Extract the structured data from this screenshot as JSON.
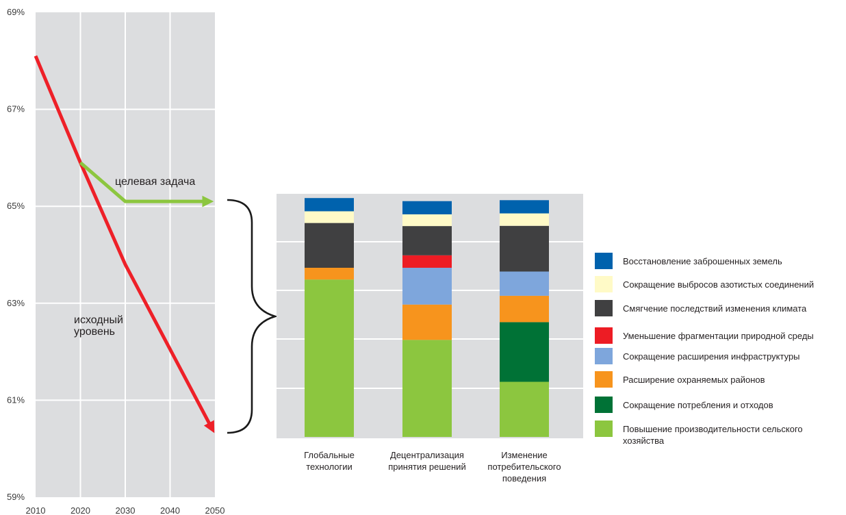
{
  "chart_data": [
    {
      "type": "line",
      "x": [
        2010,
        2020,
        2030,
        2040,
        2050
      ],
      "x_tick_labels": [
        "2010",
        "2020",
        "2030",
        "2040",
        "2050"
      ],
      "y_tick_labels": [
        "69%",
        "67%",
        "65%",
        "63%",
        "61%",
        "59%"
      ],
      "ylim": [
        59,
        69
      ],
      "xlim": [
        2010,
        2050
      ],
      "grid": true,
      "series": [
        {
          "name": "исходный уровень",
          "color": "#ee2028",
          "points": [
            [
              2010,
              68.1
            ],
            [
              2020,
              65.9
            ],
            [
              2030,
              63.8
            ],
            [
              2050,
              60.3
            ]
          ]
        },
        {
          "name": "целевая задача",
          "color": "#8cc63f",
          "points": [
            [
              2020,
              65.9
            ],
            [
              2030,
              65.1
            ],
            [
              2050,
              65.1
            ]
          ]
        }
      ],
      "annotations": [
        {
          "text": "целевая задача",
          "series": 1
        },
        {
          "text": "исходный уровень",
          "lines": [
            "исходный",
            "уровень"
          ],
          "series": 0
        }
      ]
    },
    {
      "type": "bar",
      "stacked": true,
      "categories": [
        {
          "lines": [
            "Глобальные",
            "технологии"
          ]
        },
        {
          "lines": [
            "Децентрализация",
            "принятия решений"
          ]
        },
        {
          "lines": [
            "Изменение",
            "потребительского",
            "поведения"
          ]
        }
      ],
      "ylim": [
        0,
        100
      ],
      "grid": true,
      "legend_position": "right",
      "series": [
        {
          "name": "Повышение производительности сельского хозяйства",
          "legend_lines": [
            "Повышение производительности сельского",
            "хозяйства"
          ],
          "color": "#8cc63f",
          "values": [
            66.8,
            41.2,
            23.4
          ]
        },
        {
          "name": "Сокращение потребления и отходов",
          "color": "#007236",
          "values": [
            0,
            0,
            25.3
          ]
        },
        {
          "name": "Расширение охраняемых районов",
          "color": "#f7941d",
          "values": [
            5,
            15,
            11.2
          ]
        },
        {
          "name": "Сокращение расширения инфраструктуры",
          "color": "#7ea6dc",
          "values": [
            0,
            15.6,
            10.3
          ]
        },
        {
          "name": "Уменьшение фрагментации природной среды",
          "color": "#ed1c24",
          "values": [
            0,
            5.3,
            0
          ]
        },
        {
          "name": "Смягчение последствий изменения климата",
          "color": "#404041",
          "values": [
            19,
            12.4,
            19.4
          ]
        },
        {
          "name": "Сокращение выбросов азотистых соединений",
          "color": "#fffac7",
          "values": [
            5,
            5,
            5.3
          ]
        },
        {
          "name": "Восстановление заброшенных земель",
          "color": "#0062ad",
          "values": [
            5.6,
            5.6,
            5.6
          ]
        }
      ]
    }
  ]
}
